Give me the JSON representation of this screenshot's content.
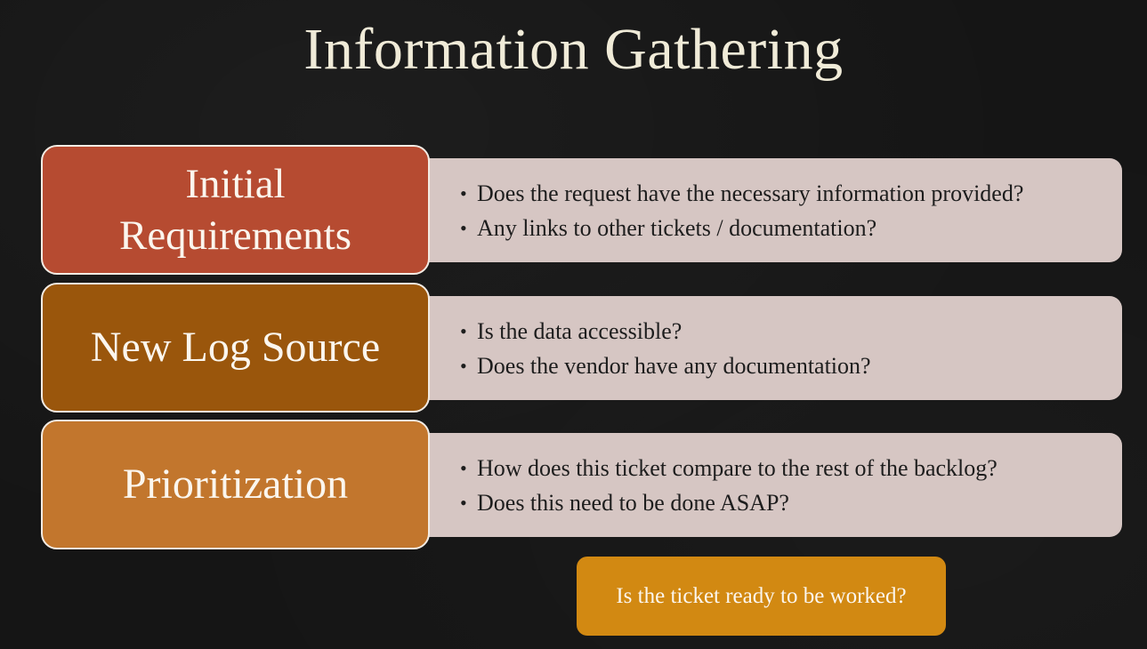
{
  "title": "Information Gathering",
  "colors": {
    "background": "#151515",
    "row_1_label": "#b64b31",
    "row_2_label": "#9a560c",
    "row_3_label": "#c2762d",
    "description_box": "#d6c6c3",
    "cta": "#d28912"
  },
  "rows": [
    {
      "label": "Initial Requirements",
      "bullets": [
        "Does the request have the necessary information provided?",
        "Any links to other tickets / documentation?"
      ]
    },
    {
      "label": "New Log Source",
      "bullets": [
        "Is the data accessible?",
        "Does the vendor have any documentation?"
      ]
    },
    {
      "label": "Prioritization",
      "bullets": [
        "How does this ticket compare to the rest of the backlog?",
        "Does this need to be done ASAP?"
      ]
    }
  ],
  "cta": "Is the ticket ready to be worked?"
}
